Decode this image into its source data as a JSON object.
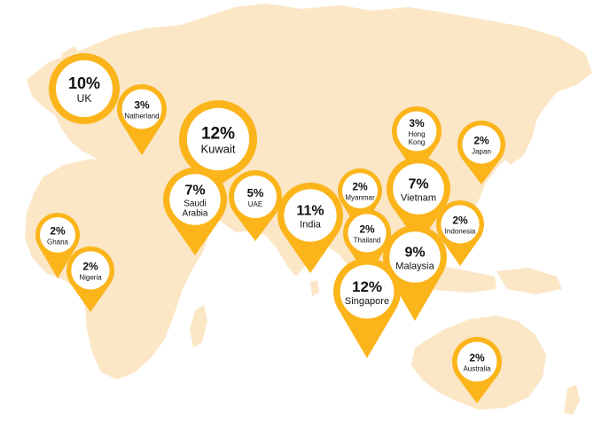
{
  "map": {
    "land_color": "#fbe6c6",
    "pin_color": "#fbb41a",
    "markers": [
      {
        "id": "uk",
        "percent": "10%",
        "label_lines": [
          "UK"
        ]
      },
      {
        "id": "netherland",
        "percent": "3%",
        "label_lines": [
          "Natherland"
        ]
      },
      {
        "id": "kuwait",
        "percent": "12%",
        "label_lines": [
          "Kuwait"
        ]
      },
      {
        "id": "saudi-arabia",
        "percent": "7%",
        "label_lines": [
          "Saudi",
          "Arabia"
        ]
      },
      {
        "id": "uae",
        "percent": "5%",
        "label_lines": [
          "UAE"
        ]
      },
      {
        "id": "india",
        "percent": "11%",
        "label_lines": [
          "India"
        ]
      },
      {
        "id": "myanmar",
        "percent": "2%",
        "label_lines": [
          "Myanmar"
        ]
      },
      {
        "id": "thailand",
        "percent": "2%",
        "label_lines": [
          "Thailand"
        ]
      },
      {
        "id": "hong-kong",
        "percent": "3%",
        "label_lines": [
          "Hong",
          "Kong"
        ]
      },
      {
        "id": "vietnam",
        "percent": "7%",
        "label_lines": [
          "Vietnam"
        ]
      },
      {
        "id": "japan",
        "percent": "2%",
        "label_lines": [
          "Japan"
        ]
      },
      {
        "id": "indonesia",
        "percent": "2%",
        "label_lines": [
          "Indonesia"
        ]
      },
      {
        "id": "malaysia",
        "percent": "9%",
        "label_lines": [
          "Malaysia"
        ]
      },
      {
        "id": "singapore",
        "percent": "12%",
        "label_lines": [
          "Singapore"
        ]
      },
      {
        "id": "ghana",
        "percent": "2%",
        "label_lines": [
          "Ghana"
        ]
      },
      {
        "id": "nigeria",
        "percent": "2%",
        "label_lines": [
          "Nigeria"
        ]
      },
      {
        "id": "australia",
        "percent": "2%",
        "label_lines": [
          "Australia"
        ]
      }
    ]
  }
}
